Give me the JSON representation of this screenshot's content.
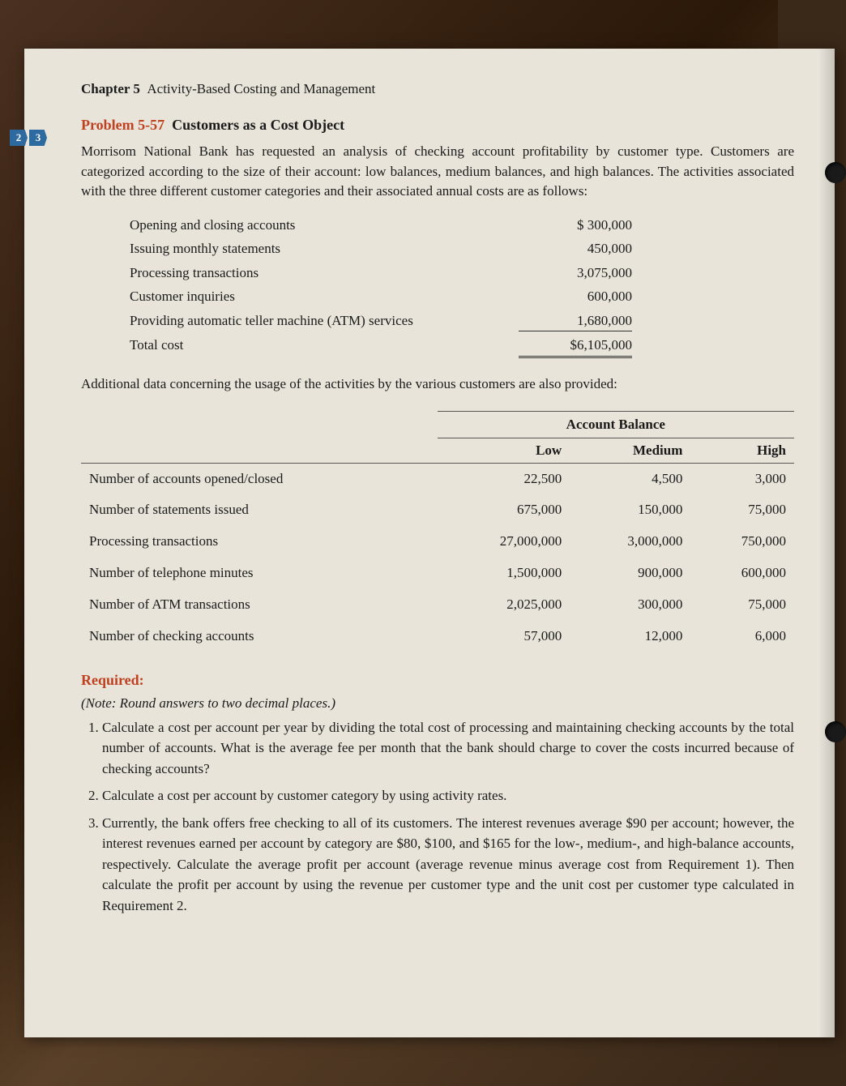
{
  "chapter": {
    "label": "Chapter 5",
    "title": "Activity-Based Costing and Management"
  },
  "objectives": [
    "2",
    "3"
  ],
  "problem": {
    "number": "Problem 5-57",
    "title": "Customers as a Cost Object",
    "intro": "Morrisom National Bank has requested an analysis of checking account profitability by customer type. Customers are categorized according to the size of their account: low balances, medium balances, and high balances. The activities associated with the three different customer categories and their associated annual costs are as follows:"
  },
  "cost_table": {
    "rows": [
      {
        "label": "Opening and closing accounts",
        "amount": "$   300,000"
      },
      {
        "label": "Issuing monthly statements",
        "amount": "450,000"
      },
      {
        "label": "Processing transactions",
        "amount": "3,075,000"
      },
      {
        "label": "Customer inquiries",
        "amount": "600,000"
      },
      {
        "label": "Providing automatic teller machine (ATM) services",
        "amount": "1,680,000"
      },
      {
        "label": "Total cost",
        "amount": "$6,105,000"
      }
    ]
  },
  "additional_text": "Additional data concerning the usage of the activities by the various customers are also provided:",
  "usage_table": {
    "super_header": "Account Balance",
    "columns": [
      "Low",
      "Medium",
      "High"
    ],
    "rows": [
      {
        "label": "Number of accounts opened/closed",
        "v": [
          "22,500",
          "4,500",
          "3,000"
        ]
      },
      {
        "label": "Number of statements issued",
        "v": [
          "675,000",
          "150,000",
          "75,000"
        ]
      },
      {
        "label": "Processing transactions",
        "v": [
          "27,000,000",
          "3,000,000",
          "750,000"
        ]
      },
      {
        "label": "Number of telephone minutes",
        "v": [
          "1,500,000",
          "900,000",
          "600,000"
        ]
      },
      {
        "label": "Number of ATM transactions",
        "v": [
          "2,025,000",
          "300,000",
          "75,000"
        ]
      },
      {
        "label": "Number of checking accounts",
        "v": [
          "57,000",
          "12,000",
          "6,000"
        ]
      }
    ]
  },
  "required_label": "Required:",
  "note": "(Note: Round answers to two decimal places.)",
  "requirements": [
    "Calculate a cost per account per year by dividing the total cost of processing and maintaining checking accounts by the total number of accounts. What is the average fee per month that the bank should charge to cover the costs incurred because of checking accounts?",
    "Calculate a cost per account by customer category by using activity rates.",
    "Currently, the bank offers free checking to all of its customers. The interest revenues average $90 per account; however, the interest revenues earned per account by category are $80, $100, and $165 for the low-, medium-, and high-balance accounts, respectively. Calculate the average profit per account (average revenue minus average cost from Requirement 1). Then calculate the profit per account by using the revenue per customer type and the unit cost per customer type calculated in Requirement 2."
  ]
}
